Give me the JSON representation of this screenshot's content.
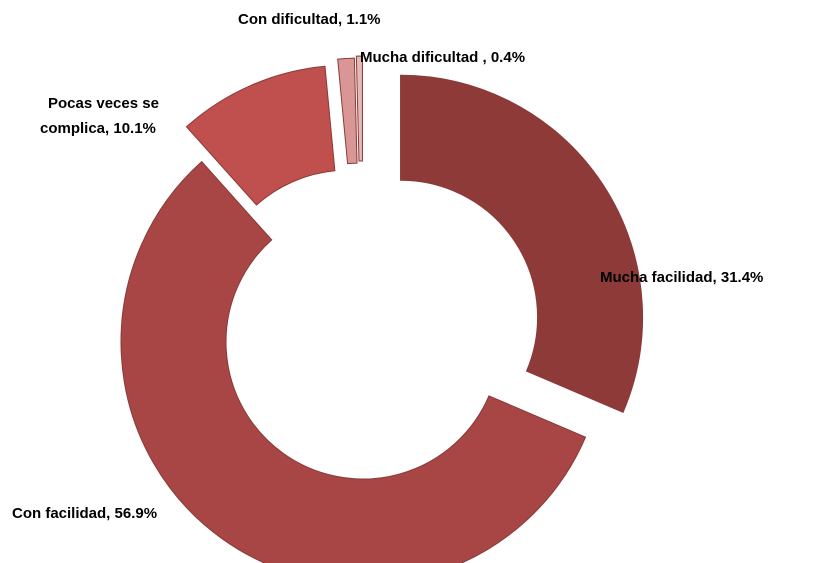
{
  "chart_data": {
    "type": "pie",
    "donut": true,
    "exploded": true,
    "title": "",
    "slices": [
      {
        "label": "Mucha facilidad",
        "value": 31.4,
        "display": "Mucha facilidad, 31.4%",
        "color": "#8e3a39"
      },
      {
        "label": "Con facilidad",
        "value": 56.9,
        "display": "Con facilidad, 56.9%",
        "color": "#a74645"
      },
      {
        "label": "Pocas veces se complica",
        "value": 10.1,
        "display_lines": [
          "Pocas veces se",
          "complica, 10.1%"
        ],
        "color": "#c0504e"
      },
      {
        "label": "Con dificultad",
        "value": 1.1,
        "display": "Con dificultad, 1.1%",
        "color": "#d99694"
      },
      {
        "label": "Mucha dificultad",
        "value": 0.4,
        "display": "Mucha dificultad , 0.4%",
        "color": "#e6b9b8"
      }
    ]
  }
}
